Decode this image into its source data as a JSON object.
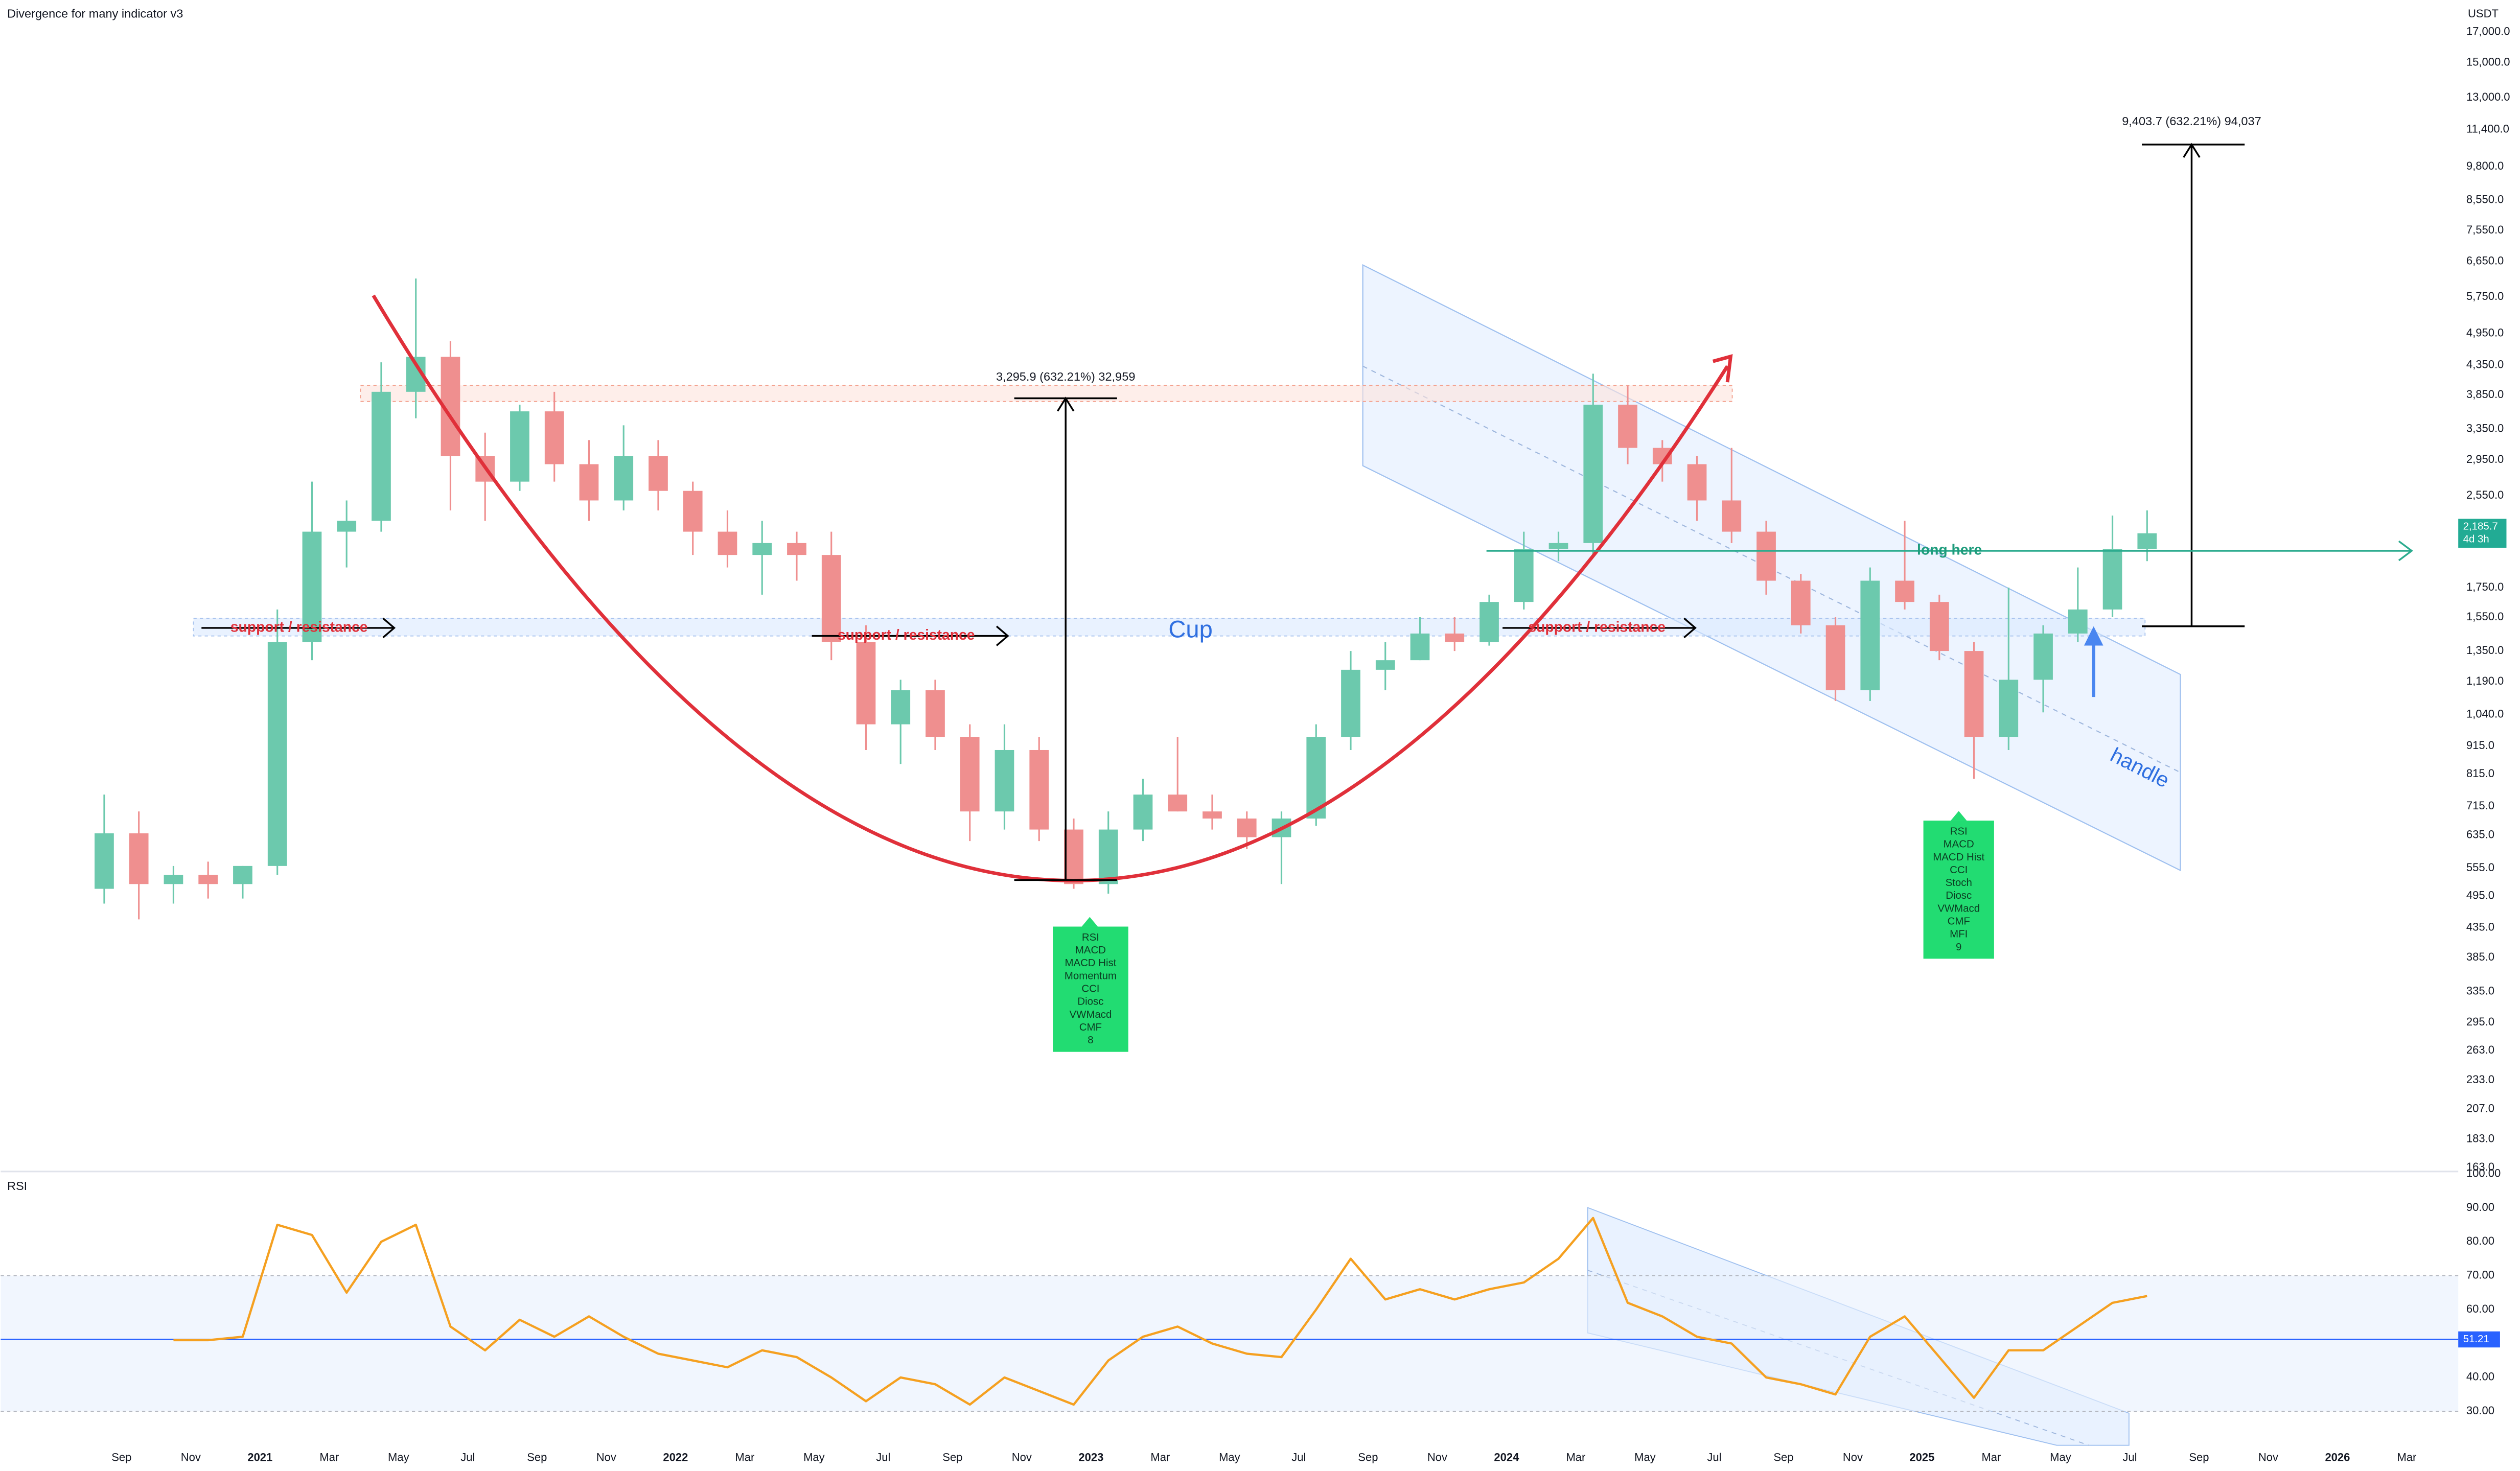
{
  "title": "Divergence for many indicator v3",
  "chart_data": [
    {
      "type": "candlestick",
      "currency": "USDT",
      "log_scale": true,
      "up_color": "#6cc9ad",
      "down_color": "#ef8f8f",
      "x": [
        "2020-08",
        "2020-09",
        "2020-10",
        "2020-11",
        "2020-12",
        "2021-01",
        "2021-02",
        "2021-03",
        "2021-04",
        "2021-05",
        "2021-06",
        "2021-07",
        "2021-08",
        "2021-09",
        "2021-10",
        "2021-11",
        "2021-12",
        "2022-01",
        "2022-02",
        "2022-03",
        "2022-04",
        "2022-05",
        "2022-06",
        "2022-07",
        "2022-08",
        "2022-09",
        "2022-10",
        "2022-11",
        "2022-12",
        "2023-01",
        "2023-02",
        "2023-03",
        "2023-04",
        "2023-05",
        "2023-06",
        "2023-07",
        "2023-08",
        "2023-09",
        "2023-10",
        "2023-11",
        "2023-12",
        "2024-01",
        "2024-02",
        "2024-03",
        "2024-04",
        "2024-05",
        "2024-06",
        "2024-07",
        "2024-08",
        "2024-09",
        "2024-10",
        "2024-11",
        "2024-12",
        "2025-01",
        "2025-02",
        "2025-03",
        "2025-04",
        "2025-05",
        "2025-06",
        "2025-07"
      ],
      "open": [
        510,
        640,
        520,
        540,
        520,
        560,
        1400,
        2200,
        2300,
        3900,
        4500,
        3000,
        2700,
        3600,
        2900,
        2500,
        3000,
        2600,
        2200,
        2000,
        2100,
        2000,
        1400,
        1000,
        1150,
        950,
        700,
        900,
        650,
        520,
        650,
        750,
        700,
        680,
        630,
        680,
        950,
        1250,
        1300,
        1450,
        1400,
        1650,
        2050,
        2100,
        3700,
        3100,
        2900,
        2500,
        2200,
        1800,
        1500,
        1150,
        1800,
        1650,
        1350,
        950,
        1200,
        1450,
        1600,
        2050
      ],
      "high": [
        750,
        700,
        560,
        570,
        560,
        1600,
        2700,
        2500,
        4400,
        6200,
        4800,
        3300,
        3700,
        3900,
        3200,
        3400,
        3200,
        2700,
        2400,
        2300,
        2200,
        2200,
        1500,
        1200,
        1200,
        1000,
        1000,
        950,
        680,
        700,
        800,
        950,
        750,
        700,
        700,
        1000,
        1350,
        1400,
        1550,
        1550,
        1700,
        2200,
        2200,
        4200,
        4000,
        3200,
        3000,
        3100,
        2300,
        1850,
        1550,
        1900,
        2300,
        1700,
        1400,
        1750,
        1500,
        1900,
        2350,
        2400
      ],
      "low": [
        480,
        450,
        480,
        490,
        490,
        540,
        1300,
        1900,
        2200,
        3500,
        2400,
        2300,
        2600,
        2700,
        2300,
        2400,
        2400,
        2000,
        1900,
        1700,
        1800,
        1300,
        900,
        850,
        900,
        620,
        650,
        620,
        510,
        500,
        620,
        700,
        650,
        600,
        520,
        660,
        900,
        1150,
        1300,
        1350,
        1380,
        1600,
        1950,
        2000,
        2900,
        2700,
        2300,
        2100,
        1700,
        1450,
        1100,
        1100,
        1600,
        1300,
        800,
        900,
        1050,
        1400,
        1550,
        1950
      ],
      "close": [
        640,
        520,
        540,
        520,
        560,
        1400,
        2200,
        2300,
        3900,
        4500,
        3000,
        2700,
        3600,
        2900,
        2500,
        3000,
        2600,
        2200,
        2000,
        2100,
        2000,
        1400,
        1000,
        1150,
        950,
        700,
        900,
        650,
        520,
        650,
        750,
        700,
        680,
        630,
        680,
        950,
        1250,
        1300,
        1450,
        1400,
        1650,
        2050,
        2100,
        3700,
        3100,
        2900,
        2500,
        2200,
        1800,
        1500,
        1150,
        1800,
        1650,
        1350,
        950,
        1200,
        1450,
        1600,
        2050,
        2185.7
      ],
      "last_price_label": "2,185.7",
      "countdown": "4d 3h",
      "xlim": [
        "2020-05",
        "2026-04"
      ],
      "xticks": [
        {
          "value": "2020-09",
          "label": "Sep"
        },
        {
          "value": "2020-11",
          "label": "Nov"
        },
        {
          "value": "2021-01",
          "label": "2021"
        },
        {
          "value": "2021-03",
          "label": "Mar"
        },
        {
          "value": "2021-05",
          "label": "May"
        },
        {
          "value": "2021-07",
          "label": "Jul"
        },
        {
          "value": "2021-09",
          "label": "Sep"
        },
        {
          "value": "2021-11",
          "label": "Nov"
        },
        {
          "value": "2022-01",
          "label": "2022"
        },
        {
          "value": "2022-03",
          "label": "Mar"
        },
        {
          "value": "2022-05",
          "label": "May"
        },
        {
          "value": "2022-07",
          "label": "Jul"
        },
        {
          "value": "2022-09",
          "label": "Sep"
        },
        {
          "value": "2022-11",
          "label": "Nov"
        },
        {
          "value": "2023-01",
          "label": "2023"
        },
        {
          "value": "2023-03",
          "label": "Mar"
        },
        {
          "value": "2023-05",
          "label": "May"
        },
        {
          "value": "2023-07",
          "label": "Jul"
        },
        {
          "value": "2023-09",
          "label": "Sep"
        },
        {
          "value": "2023-11",
          "label": "Nov"
        },
        {
          "value": "2024-01",
          "label": "2024"
        },
        {
          "value": "2024-03",
          "label": "Mar"
        },
        {
          "value": "2024-05",
          "label": "May"
        },
        {
          "value": "2024-07",
          "label": "Jul"
        },
        {
          "value": "2024-09",
          "label": "Sep"
        },
        {
          "value": "2024-11",
          "label": "Nov"
        },
        {
          "value": "2025-01",
          "label": "2025"
        },
        {
          "value": "2025-03",
          "label": "Mar"
        },
        {
          "value": "2025-05",
          "label": "May"
        },
        {
          "value": "2025-07",
          "label": "Jul"
        },
        {
          "value": "2025-09",
          "label": "Sep"
        },
        {
          "value": "2025-11",
          "label": "Nov"
        },
        {
          "value": "2026-01",
          "label": "2026"
        },
        {
          "value": "2026-03",
          "label": "Mar"
        }
      ],
      "ylim": [
        163,
        17000
      ],
      "yticks": [
        {
          "value": 163,
          "label": "163.0"
        },
        {
          "value": 183,
          "label": "183.0"
        },
        {
          "value": 207,
          "label": "207.0"
        },
        {
          "value": 233,
          "label": "233.0"
        },
        {
          "value": 263,
          "label": "263.0"
        },
        {
          "value": 295,
          "label": "295.0"
        },
        {
          "value": 335,
          "label": "335.0"
        },
        {
          "value": 385,
          "label": "385.0"
        },
        {
          "value": 435,
          "label": "435.0"
        },
        {
          "value": 495,
          "label": "495.0"
        },
        {
          "value": 555,
          "label": "555.0"
        },
        {
          "value": 635,
          "label": "635.0"
        },
        {
          "value": 715,
          "label": "715.0"
        },
        {
          "value": 815,
          "label": "815.0"
        },
        {
          "value": 915,
          "label": "915.0"
        },
        {
          "value": 1040,
          "label": "1,040.0"
        },
        {
          "value": 1190,
          "label": "1,190.0"
        },
        {
          "value": 1350,
          "label": "1,350.0"
        },
        {
          "value": 1550,
          "label": "1,550.0"
        },
        {
          "value": 1750,
          "label": "1,750.0"
        },
        {
          "value": 2550,
          "label": "2,550.0"
        },
        {
          "value": 2950,
          "label": "2,950.0"
        },
        {
          "value": 3350,
          "label": "3,350.0"
        },
        {
          "value": 3850,
          "label": "3,850.0"
        },
        {
          "value": 4350,
          "label": "4,350.0"
        },
        {
          "value": 4950,
          "label": "4,950.0"
        },
        {
          "value": 5750,
          "label": "5,750.0"
        },
        {
          "value": 6650,
          "label": "6,650.0"
        },
        {
          "value": 7550,
          "label": "7,550.0"
        },
        {
          "value": 8550,
          "label": "8,550.0"
        },
        {
          "value": 9800,
          "label": "9,800.0"
        },
        {
          "value": 11400,
          "label": "11,400.0"
        },
        {
          "value": 13000,
          "label": "13,000.0"
        },
        {
          "value": 15000,
          "label": "15,000.0"
        },
        {
          "value": 17000,
          "label": "17,000.0"
        }
      ]
    },
    {
      "type": "line",
      "title": "RSI",
      "color": "#f5a020",
      "x": [
        "2020-10",
        "2020-11",
        "2020-12",
        "2021-01",
        "2021-02",
        "2021-03",
        "2021-04",
        "2021-05",
        "2021-06",
        "2021-07",
        "2021-08",
        "2021-09",
        "2021-10",
        "2021-11",
        "2021-12",
        "2022-01",
        "2022-02",
        "2022-03",
        "2022-04",
        "2022-05",
        "2022-06",
        "2022-07",
        "2022-08",
        "2022-09",
        "2022-10",
        "2022-11",
        "2022-12",
        "2023-01",
        "2023-02",
        "2023-03",
        "2023-04",
        "2023-05",
        "2023-06",
        "2023-07",
        "2023-08",
        "2023-09",
        "2023-10",
        "2023-11",
        "2023-12",
        "2024-01",
        "2024-02",
        "2024-03",
        "2024-04",
        "2024-05",
        "2024-06",
        "2024-07",
        "2024-08",
        "2024-09",
        "2024-10",
        "2024-11",
        "2024-12",
        "2025-01",
        "2025-02",
        "2025-03",
        "2025-04",
        "2025-05",
        "2025-06",
        "2025-07"
      ],
      "values": [
        51,
        51,
        52,
        85,
        82,
        65,
        80,
        85,
        55,
        48,
        57,
        52,
        58,
        52,
        47,
        45,
        43,
        48,
        46,
        40,
        33,
        40,
        38,
        32,
        40,
        36,
        32,
        45,
        52,
        55,
        50,
        47,
        46,
        60,
        75,
        63,
        66,
        63,
        66,
        68,
        75,
        87,
        62,
        58,
        52,
        50,
        40,
        38,
        35,
        52,
        58,
        46,
        34,
        48,
        48,
        55,
        62,
        64
      ],
      "reference_line": 51.21,
      "reference_color": "#2962ff",
      "band": [
        30,
        70
      ],
      "ylim": [
        20,
        100
      ],
      "yticks": [
        {
          "value": 30,
          "label": "30.00"
        },
        {
          "value": 40,
          "label": "40.00"
        },
        {
          "value": 60,
          "label": "60.00"
        },
        {
          "value": 70,
          "label": "70.00"
        },
        {
          "value": 80,
          "label": "80.00"
        },
        {
          "value": 90,
          "label": "90.00"
        },
        {
          "value": 100,
          "label": "100.00"
        }
      ]
    }
  ],
  "annotations": {
    "support_resistance": [
      "support / resistance",
      "support / resistance",
      "support / resistance"
    ],
    "cup": "Cup",
    "handle": "handle",
    "long_here": "long here",
    "measure_1": "3,295.9 (632.21%) 32,959",
    "measure_2": "9,403.7 (632.21%) 94,037",
    "divergence_1": [
      "RSI",
      "MACD",
      "MACD Hist",
      "Momentum",
      "CCI",
      "Diosc",
      "VWMacd",
      "CMF",
      "8"
    ],
    "divergence_2": [
      "RSI",
      "MACD",
      "MACD Hist",
      "CCI",
      "Stoch",
      "Diosc",
      "VWMacd",
      "CMF",
      "MFI",
      "9"
    ]
  }
}
